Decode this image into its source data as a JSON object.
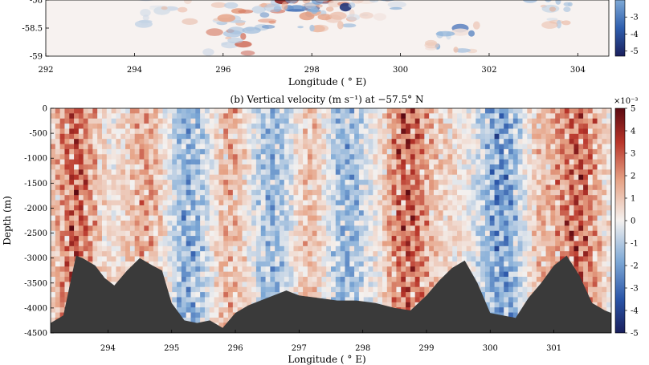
{
  "chart_data": [
    {
      "id": "a",
      "type": "heatmap",
      "title": "",
      "xlabel": "Longitude ( ° E)",
      "ylabel": "",
      "xlim": [
        292,
        304.7
      ],
      "ylim": [
        -59,
        -58
      ],
      "x_ticks": [
        292,
        294,
        296,
        298,
        300,
        302,
        304
      ],
      "y_ticks": [
        -59,
        -58.5,
        -58
      ],
      "y_tick_labels": [
        "-59",
        "-58.5",
        "-58"
      ],
      "colorbar": {
        "ticks": [
          -5,
          -4,
          -3
        ],
        "tick_labels": [
          "-5",
          "-4",
          "-3"
        ],
        "colormap": "diverging-blue-white-red"
      }
    },
    {
      "id": "b",
      "type": "heatmap",
      "title": "(b) Vertical velocity (m s⁻¹) at −57.5° N",
      "xlabel": "Longitude ( ° E)",
      "ylabel": "Depth (m)",
      "xlim": [
        293.1,
        301.9
      ],
      "ylim": [
        -4500,
        0
      ],
      "x_ticks": [
        294,
        295,
        296,
        297,
        298,
        299,
        300,
        301
      ],
      "y_ticks": [
        0,
        -500,
        -1000,
        -1500,
        -2000,
        -2500,
        -3000,
        -3500,
        -4000,
        -4500
      ],
      "y_tick_labels": [
        "0",
        "-500",
        "-1000",
        "-1500",
        "-2000",
        "-2500",
        "-3000",
        "-3500",
        "-4000",
        "-4500"
      ],
      "colorbar": {
        "multiplier": "×10⁻³",
        "ticks": [
          5,
          4,
          3,
          2,
          1,
          0,
          -1,
          -2,
          -3,
          -4,
          -5
        ],
        "tick_labels": [
          "5",
          "4",
          "3",
          "2",
          "1",
          "0",
          "-1",
          "-2",
          "-3",
          "-4",
          "-5"
        ],
        "vmin": -5,
        "vmax": 5,
        "colormap": "diverging-blue-white-red"
      },
      "bathymetry": {
        "lon": [
          293.1,
          293.3,
          293.5,
          293.6,
          293.8,
          293.95,
          294.1,
          294.3,
          294.5,
          294.7,
          294.85,
          295.0,
          295.2,
          295.4,
          295.6,
          295.8,
          296.0,
          296.2,
          296.5,
          296.8,
          297.0,
          297.3,
          297.6,
          297.9,
          298.2,
          298.5,
          298.75,
          299.0,
          299.2,
          299.4,
          299.6,
          299.8,
          300.0,
          300.2,
          300.4,
          300.6,
          300.8,
          301.0,
          301.2,
          301.4,
          301.6,
          301.8,
          301.9
        ],
        "depth": [
          -4300,
          -4150,
          -2950,
          -3000,
          -3150,
          -3400,
          -3550,
          -3250,
          -3000,
          -3150,
          -3250,
          -3900,
          -4250,
          -4300,
          -4250,
          -4400,
          -4100,
          -3950,
          -3800,
          -3650,
          -3750,
          -3800,
          -3850,
          -3850,
          -3900,
          -4000,
          -4050,
          -3750,
          -3450,
          -3200,
          -3050,
          -3500,
          -4100,
          -4150,
          -4200,
          -3800,
          -3500,
          -3150,
          -2950,
          -3350,
          -3900,
          -4050,
          -4100
        ]
      }
    }
  ]
}
